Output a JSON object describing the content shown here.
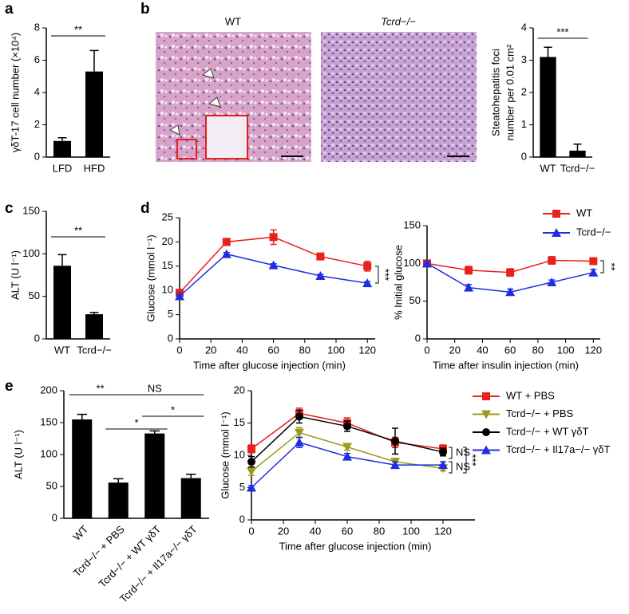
{
  "micrographs": {
    "panel": "b",
    "labels": [
      "WT",
      "Tcrd−/−"
    ]
  },
  "chart_data": [
    {
      "panel": "a",
      "type": "bar",
      "ylabel": "γδT-17 cell number (×10⁴)",
      "categories": [
        "LFD",
        "HFD"
      ],
      "values": [
        1.0,
        5.3
      ],
      "errors": [
        0.2,
        1.3
      ],
      "color": "#000000",
      "ylim": [
        0,
        8
      ],
      "yticks": [
        0,
        2,
        4,
        6,
        8
      ],
      "annotations": [
        "**"
      ]
    },
    {
      "type": "bar",
      "ylabel": [
        "Steatohepatitis foci",
        "number per 0.01 cm²"
      ],
      "categories": [
        "WT",
        "Tcrd−/−"
      ],
      "values": [
        3.1,
        0.2
      ],
      "errors": [
        0.3,
        0.2
      ],
      "color": "#000000",
      "ylim": [
        0,
        4
      ],
      "yticks": [
        0,
        1,
        2,
        3,
        4
      ],
      "annotations": [
        "***"
      ]
    },
    {
      "panel": "c",
      "type": "bar",
      "ylabel": "ALT (U l⁻¹)",
      "categories": [
        "WT",
        "Tcrd−/−"
      ],
      "values": [
        86,
        29
      ],
      "errors": [
        13,
        2
      ],
      "color": "#000000",
      "ylim": [
        0,
        150
      ],
      "yticks": [
        0,
        50,
        100,
        150
      ],
      "annotations": [
        "**"
      ]
    },
    {
      "panel": "d",
      "type": "line",
      "xlabel": "Time after glucose injection (min)",
      "ylabel": "Glucose (mmol l⁻¹)",
      "x": [
        0,
        30,
        60,
        90,
        120
      ],
      "series": [
        {
          "name": "WT",
          "color": "#e8211d",
          "marker": "square",
          "values": [
            9.5,
            20,
            21,
            17,
            15
          ],
          "errors": [
            0.5,
            0.7,
            1.5,
            0.5,
            1
          ]
        },
        {
          "name": "Tcrd−/−",
          "color": "#1f2fe0",
          "marker": "triangle",
          "values": [
            8.8,
            17.5,
            15.2,
            13,
            11.5
          ],
          "errors": [
            0.3,
            0.3,
            0.3,
            0.3,
            0.3
          ]
        }
      ],
      "xlim": [
        0,
        125
      ],
      "xticks": [
        0,
        20,
        40,
        60,
        80,
        100,
        120
      ],
      "ylim": [
        0,
        25
      ],
      "yticks": [
        0,
        5,
        10,
        15,
        20,
        25
      ],
      "annotations": [
        "***"
      ]
    },
    {
      "type": "line",
      "xlabel": "Time after insulin injection (min)",
      "ylabel": "% Initial glucose",
      "x": [
        0,
        30,
        60,
        90,
        120
      ],
      "series": [
        {
          "name": "WT",
          "color": "#e8211d",
          "marker": "square",
          "values": [
            100,
            91,
            88,
            104,
            103
          ],
          "errors": [
            2,
            5,
            5,
            5,
            4
          ]
        },
        {
          "name": "Tcrd−/−",
          "color": "#1f2fe0",
          "marker": "triangle",
          "values": [
            100,
            68,
            62,
            75,
            88
          ],
          "errors": [
            2,
            4,
            4,
            3,
            4
          ]
        }
      ],
      "xlim": [
        0,
        125
      ],
      "xticks": [
        0,
        20,
        40,
        60,
        80,
        100,
        120
      ],
      "ylim": [
        0,
        150
      ],
      "yticks": [
        0,
        50,
        100,
        150
      ],
      "annotations": [
        "**"
      ],
      "legend": "upper right"
    },
    {
      "panel": "e",
      "type": "bar",
      "ylabel": "ALT (U l⁻¹)",
      "categories": [
        "WT",
        "Tcrd−/− + PBS",
        "Tcrd−/− + WT γδT",
        "Tcrd−/− + Il17a−/− γδT"
      ],
      "values": [
        155,
        56,
        133,
        63
      ],
      "errors": [
        8,
        6,
        4,
        6
      ],
      "color": "#000000",
      "ylim": [
        0,
        200
      ],
      "yticks": [
        0,
        50,
        100,
        150,
        200
      ],
      "annotations": [
        "**",
        "NS",
        "*",
        "*"
      ]
    },
    {
      "type": "line",
      "xlabel": "Time after glucose injection (min)",
      "ylabel": "Glucose (mmol l⁻¹)",
      "x": [
        0,
        30,
        60,
        90,
        120
      ],
      "series": [
        {
          "name": "WT + PBS",
          "color": "#e8211d",
          "marker": "square",
          "values": [
            11,
            16.5,
            15,
            12,
            11
          ],
          "errors": [
            0.6,
            0.8,
            0.8,
            0.8,
            0.6
          ]
        },
        {
          "name": "Tcrd−/− + PBS",
          "color": "#9a9a1e",
          "marker": "triangle-down",
          "values": [
            7.5,
            13.5,
            11.3,
            9,
            8
          ],
          "errors": [
            0.6,
            0.8,
            0.5,
            0.5,
            0.4
          ]
        },
        {
          "name": "Tcrd−/− + WT γδT",
          "color": "#000000",
          "marker": "circle",
          "values": [
            9,
            16,
            14.5,
            12.2,
            10.5
          ],
          "errors": [
            0.8,
            1,
            0.8,
            2,
            0.6
          ]
        },
        {
          "name": "Tcrd−/− + Il17a−/− γδT",
          "color": "#1f2fe0",
          "marker": "triangle",
          "values": [
            5,
            12,
            9.8,
            8.5,
            8.5
          ],
          "errors": [
            0.3,
            0.8,
            0.5,
            0.5,
            0.5
          ]
        }
      ],
      "xlim": [
        0,
        140
      ],
      "xticks": [
        0,
        20,
        40,
        60,
        80,
        100,
        120
      ],
      "ylim": [
        0,
        20
      ],
      "yticks": [
        0,
        5,
        10,
        15,
        20
      ],
      "annotations": [
        "NS",
        "NS",
        "***"
      ],
      "legend": "outside right"
    }
  ]
}
